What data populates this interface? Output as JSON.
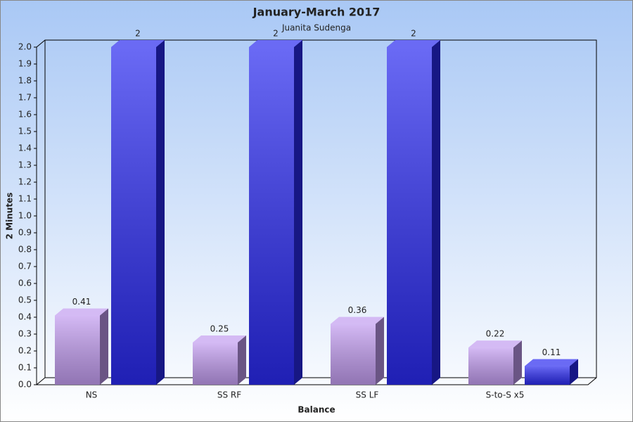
{
  "chart_data": {
    "type": "bar3d",
    "title": "January-March 2017",
    "subtitle": "Juanita Sudenga",
    "x_label": "Balance",
    "y_label": "2 Minutes",
    "categories": [
      "NS",
      "SS RF",
      "SS LF",
      "S-to-S x5"
    ],
    "series": [
      {
        "color": "#c29cf0",
        "values": [
          0.41,
          0.25,
          0.36,
          0.22
        ]
      },
      {
        "color": "#2a2af0",
        "values": [
          2,
          2,
          2,
          0.11
        ]
      }
    ],
    "ylim": [
      0,
      2
    ],
    "yticks": [
      {
        "value": 0,
        "label": "0.0"
      },
      0.1,
      0.2,
      0.3,
      0.4,
      0.5,
      0.6,
      0.7,
      0.8,
      0.9,
      {
        "value": 1,
        "label": "1.0"
      },
      1.1,
      1.2,
      1.3,
      1.4,
      1.5,
      1.6,
      1.7,
      1.8,
      1.9,
      {
        "value": 2,
        "label": "2.0"
      }
    ],
    "grid": false
  }
}
